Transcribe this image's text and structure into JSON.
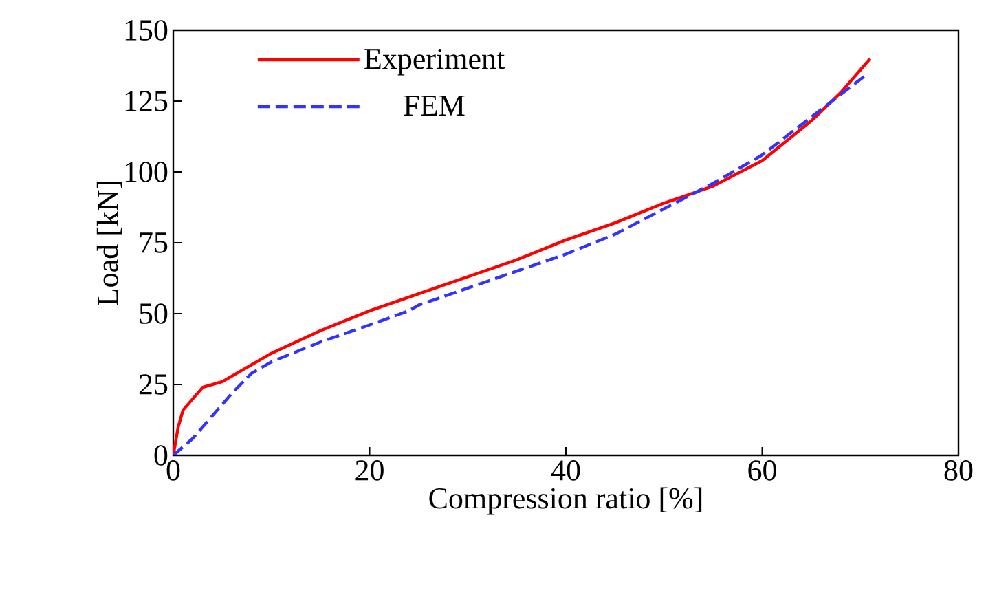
{
  "chart_data": {
    "type": "line",
    "xlabel": "Compression ratio [%]",
    "ylabel": "Load [kN]",
    "xlim": [
      0,
      80
    ],
    "xticks": [
      0,
      20,
      40,
      60,
      80
    ],
    "ylim": [
      0,
      150
    ],
    "yticks": [
      0,
      25,
      50,
      75,
      100,
      125,
      150
    ],
    "grid": false,
    "legend": "top left",
    "series": [
      {
        "name": "Experiment",
        "color": "#ff0000",
        "line_style": "solid",
        "x": [
          0,
          0.5,
          1,
          2,
          3,
          4,
          5,
          7,
          10,
          15,
          20,
          25,
          30,
          35,
          40,
          45,
          50,
          55,
          60,
          65,
          68,
          71
        ],
        "values": [
          0,
          10,
          16,
          20,
          24,
          25,
          26,
          30,
          36,
          44,
          51,
          57,
          63,
          69,
          76,
          82,
          89,
          95,
          104,
          118,
          128,
          140
        ]
      },
      {
        "name": "FEM",
        "color": "#3333ff",
        "line_style": "dashed",
        "x": [
          0,
          2,
          4,
          6,
          8,
          10,
          15,
          20,
          24,
          25,
          30,
          35,
          40,
          45,
          50,
          55,
          58,
          60,
          63,
          66,
          70.5
        ],
        "values": [
          0,
          6,
          14,
          22,
          29,
          33,
          40,
          46,
          51,
          53,
          59,
          65,
          71,
          78,
          87,
          96,
          102,
          106,
          114,
          122,
          134
        ]
      }
    ]
  }
}
